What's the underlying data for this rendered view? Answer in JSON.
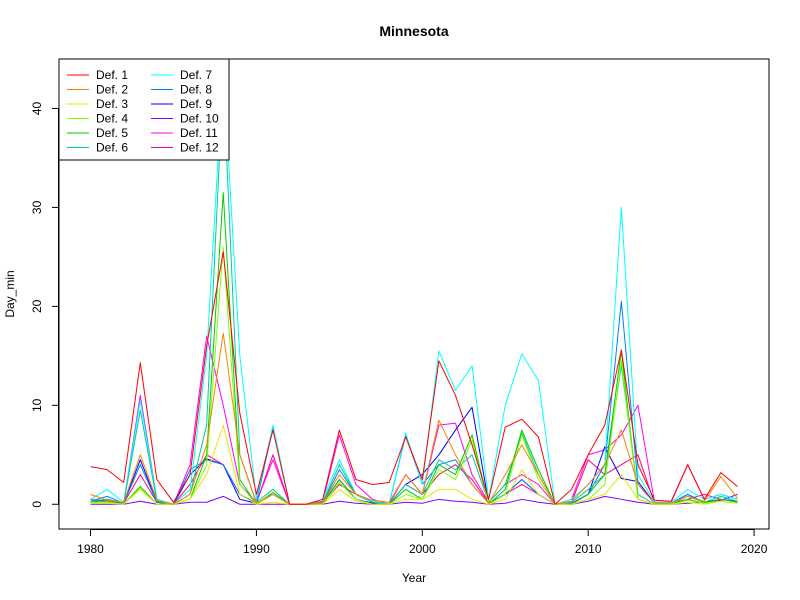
{
  "chart_data": {
    "type": "line",
    "title": "Minnesota",
    "xlabel": "Year",
    "ylabel": "Day_min",
    "xlim": [
      1978.1,
      2020.9
    ],
    "ylim": [
      -2.5,
      45
    ],
    "xticks": [
      1980,
      1990,
      2000,
      2010,
      2020
    ],
    "yticks": [
      0,
      10,
      20,
      30,
      40
    ],
    "grid": false,
    "legend_position": "top-left",
    "legend_columns": 2,
    "x": [
      1980,
      1981,
      1982,
      1983,
      1984,
      1985,
      1986,
      1987,
      1988,
      1989,
      1990,
      1991,
      1992,
      1993,
      1994,
      1995,
      1996,
      1997,
      1998,
      1999,
      2000,
      2001,
      2002,
      2003,
      2004,
      2005,
      2006,
      2007,
      2008,
      2009,
      2010,
      2011,
      2012,
      2013,
      2014,
      2015,
      2016,
      2017,
      2018,
      2019
    ],
    "series": [
      {
        "name": "Def. 1",
        "color": "#FF0000",
        "values": [
          3.8,
          3.5,
          2.2,
          14.3,
          2.5,
          0.2,
          3.0,
          16.0,
          25.5,
          9.2,
          1.0,
          7.5,
          0,
          0,
          0.5,
          7.5,
          2.5,
          2.0,
          2.2,
          6.8,
          2.5,
          14.5,
          11.0,
          6.0,
          0.5,
          7.8,
          8.6,
          6.8,
          0,
          1.5,
          5.0,
          8.0,
          15.6,
          4.0,
          0.4,
          0.3,
          4.0,
          0.5,
          3.2,
          1.8
        ]
      },
      {
        "name": "Def. 2",
        "color": "#FF8000",
        "values": [
          1.0,
          0.4,
          0.2,
          5.0,
          0.4,
          0,
          1.0,
          6.0,
          17.3,
          5.0,
          0.1,
          1.0,
          0,
          0,
          0.1,
          3.0,
          1.0,
          0.4,
          0.2,
          3.0,
          1.0,
          8.5,
          5.0,
          2.0,
          0.1,
          3.0,
          6.0,
          3.0,
          0,
          0.3,
          2.0,
          4.0,
          7.5,
          2.0,
          0.1,
          0.1,
          0.8,
          0.3,
          2.8,
          0.6
        ]
      },
      {
        "name": "Def. 3",
        "color": "#E6E600",
        "values": [
          0.1,
          0.1,
          0,
          1.5,
          0,
          0,
          0.5,
          3.0,
          8.0,
          1.0,
          0,
          0.2,
          0,
          0,
          0,
          1.5,
          0.3,
          0,
          0,
          0.5,
          0.5,
          1.5,
          1.5,
          0.5,
          0,
          0.5,
          3.5,
          1.0,
          0,
          0,
          0.5,
          1.0,
          3.0,
          0.5,
          0,
          0,
          0.2,
          0,
          0.3,
          0.1
        ]
      },
      {
        "name": "Def. 4",
        "color": "#80FF00",
        "values": [
          0.2,
          0.2,
          0,
          1.6,
          0,
          0,
          0.5,
          4.0,
          26.0,
          2.0,
          0,
          1.0,
          0,
          0,
          0,
          2.2,
          0.5,
          0,
          0,
          1.0,
          0.5,
          3.5,
          2.5,
          6.5,
          0,
          1.0,
          7.0,
          2.5,
          0,
          0,
          0.5,
          2.0,
          14.5,
          0.5,
          0,
          0,
          0.4,
          0.1,
          0.3,
          0.1
        ]
      },
      {
        "name": "Def. 5",
        "color": "#00CC00",
        "values": [
          0.2,
          0.3,
          0,
          1.8,
          0,
          0,
          0.5,
          5.0,
          31.5,
          2.5,
          0,
          1.2,
          0,
          0,
          0,
          2.5,
          0.5,
          0,
          0,
          1.5,
          0.5,
          4.0,
          3.0,
          7.0,
          0,
          1.5,
          7.5,
          3.5,
          0,
          0,
          1.0,
          3.0,
          15.5,
          0.5,
          0,
          0,
          0.5,
          0.1,
          0.5,
          0.2
        ]
      },
      {
        "name": "Def. 6",
        "color": "#00CC99",
        "values": [
          0.3,
          0.5,
          0.1,
          9.5,
          0.3,
          0,
          1.0,
          8.0,
          43.0,
          5.0,
          0.2,
          1.5,
          0,
          0,
          0.2,
          4.0,
          1.0,
          0.2,
          0,
          2.0,
          1.0,
          4.5,
          3.5,
          5.0,
          0.2,
          2.0,
          7.2,
          3.0,
          0,
          0.2,
          1.5,
          3.0,
          14.0,
          1.0,
          0,
          0,
          0.8,
          0.2,
          0.8,
          0.3
        ]
      },
      {
        "name": "Def. 7",
        "color": "#00FFFF",
        "values": [
          0.5,
          1.5,
          0.2,
          10.5,
          0.5,
          0,
          1.5,
          15.0,
          44.0,
          15.0,
          0.5,
          8.0,
          0,
          0,
          0.5,
          4.5,
          1.0,
          0.3,
          0,
          7.2,
          2.0,
          15.5,
          11.5,
          14.0,
          0.5,
          10.0,
          15.2,
          12.5,
          0,
          0.5,
          2.0,
          4.0,
          30.0,
          3.0,
          0.2,
          0.2,
          1.5,
          0.5,
          1.0,
          0.5
        ]
      },
      {
        "name": "Def. 8",
        "color": "#0080FF",
        "values": [
          0.3,
          0.8,
          0.1,
          4.0,
          0.2,
          0,
          3.5,
          4.5,
          4.0,
          1.0,
          0.1,
          7.8,
          0,
          0,
          0.1,
          3.5,
          1.0,
          0.2,
          0,
          7.0,
          2.0,
          4.0,
          4.5,
          2.0,
          0.1,
          1.0,
          2.5,
          1.0,
          0,
          0.1,
          1.0,
          4.0,
          20.5,
          2.0,
          0.1,
          0.1,
          1.0,
          0.2,
          0.5,
          0.3
        ]
      },
      {
        "name": "Def. 9",
        "color": "#0000FF",
        "values": [
          0.2,
          0.5,
          0.1,
          4.5,
          0.2,
          0,
          3.0,
          4.6,
          4.0,
          0.5,
          0.1,
          1.0,
          0,
          0,
          0.1,
          2.5,
          0.5,
          0.1,
          0,
          2.0,
          3.0,
          5.0,
          7.5,
          9.8,
          0.1,
          1.0,
          2.5,
          1.0,
          0,
          0.1,
          1.0,
          5.8,
          2.6,
          2.3,
          0.1,
          0.1,
          1.0,
          0.2,
          0.5,
          0.3
        ]
      },
      {
        "name": "Def. 10",
        "color": "#8000FF",
        "values": [
          0,
          0,
          0,
          0.3,
          0,
          0,
          0.2,
          0.2,
          0.8,
          0,
          0,
          0,
          0,
          0,
          0,
          0.3,
          0.1,
          0,
          0,
          0.2,
          0.1,
          0.5,
          0.3,
          0.2,
          0,
          0.1,
          0.5,
          0.2,
          0,
          0,
          0.3,
          0.8,
          0.5,
          0.2,
          0,
          0,
          0.1,
          0.2,
          0.4,
          1.0
        ]
      },
      {
        "name": "Def. 11",
        "color": "#FF00FF",
        "values": [
          0.5,
          0.3,
          0.1,
          11.0,
          0.5,
          0,
          4.0,
          17.0,
          10.0,
          2.0,
          0.2,
          4.5,
          0,
          0,
          0.3,
          7.0,
          2.0,
          0.5,
          0,
          3.0,
          1.0,
          8.0,
          8.2,
          3.0,
          0.2,
          2.0,
          3.0,
          2.0,
          0,
          0.5,
          5.0,
          5.5,
          7.0,
          10.0,
          0.2,
          0.2,
          4.0,
          0.5,
          1.0,
          0.5
        ]
      },
      {
        "name": "Def. 12",
        "color": "#FF0080",
        "values": [
          0.3,
          0.5,
          0.1,
          3.0,
          0.2,
          0,
          2.0,
          5.0,
          4.0,
          1.0,
          0.1,
          5.0,
          0,
          0,
          0.1,
          2.0,
          1.0,
          0.2,
          0,
          2.0,
          1.0,
          3.0,
          4.0,
          2.5,
          0.1,
          1.0,
          2.0,
          1.0,
          0,
          0.2,
          4.5,
          3.0,
          4.0,
          5.0,
          0.1,
          0.1,
          0.5,
          1.0,
          0.5,
          0.3
        ]
      }
    ]
  }
}
